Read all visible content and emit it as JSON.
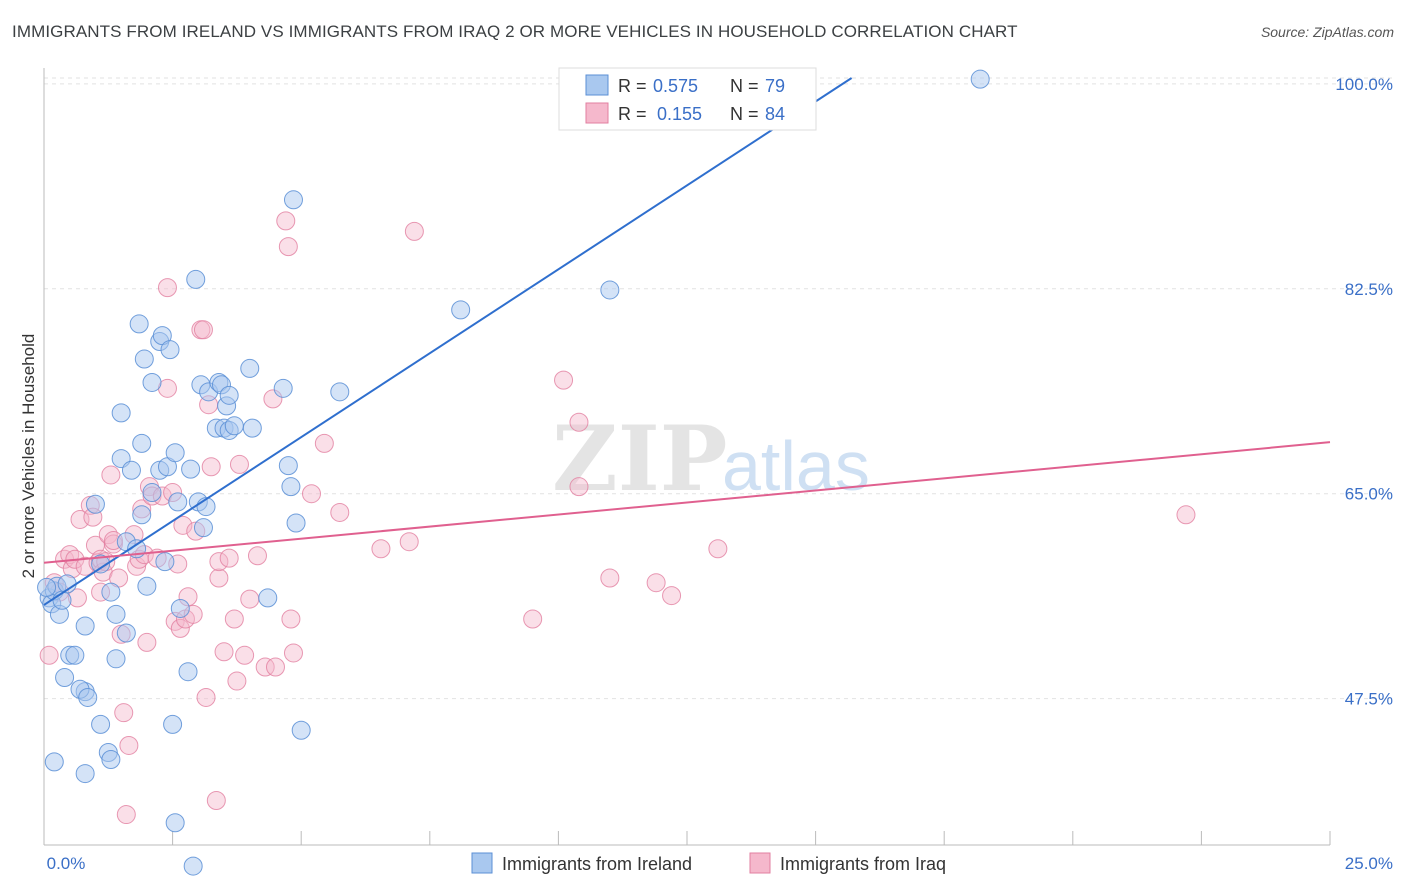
{
  "header": {
    "title": "IMMIGRANTS FROM IRELAND VS IMMIGRANTS FROM IRAQ 2 OR MORE VEHICLES IN HOUSEHOLD CORRELATION CHART",
    "source": "Source: ZipAtlas.com"
  },
  "legend": {
    "r_label": "R =",
    "n_label": "N =",
    "ireland": {
      "r": "0.575",
      "n": "79"
    },
    "iraq": {
      "r": "0.155",
      "n": "84"
    }
  },
  "watermark": {
    "zip": "ZIP",
    "atlas": "atlas"
  },
  "colors": {
    "ireland_fill": "#a9c8ef",
    "ireland_stroke": "#5b8fd6",
    "ireland_line": "#2f6fce",
    "iraq_fill": "#f5b8cc",
    "iraq_stroke": "#e27fa0",
    "iraq_line": "#e0608f",
    "tick_text": "#3a6fc7"
  },
  "chart_data": {
    "type": "scatter",
    "title": "IMMIGRANTS FROM IRELAND VS IMMIGRANTS FROM IRAQ 2 OR MORE VEHICLES IN HOUSEHOLD CORRELATION CHART",
    "xlabel": "",
    "ylabel": "2 or more Vehicles in Household",
    "xlim": [
      0,
      25
    ],
    "ylim": [
      35,
      100.5
    ],
    "x_tick_labels": [
      "0.0%",
      "25.0%"
    ],
    "y_ticks": [
      47.5,
      65.0,
      82.5,
      100.0
    ],
    "y_tick_labels": [
      "47.5%",
      "65.0%",
      "82.5%",
      "100.0%"
    ],
    "grid": true,
    "series": [
      {
        "name": "Immigrants from Ireland",
        "r": 0.575,
        "n": 79,
        "trend": [
          [
            0,
            55.5
          ],
          [
            15.7,
            100.5
          ]
        ],
        "points": [
          [
            0.1,
            56.1
          ],
          [
            0.15,
            55.6
          ],
          [
            0.2,
            56.7
          ],
          [
            0.25,
            57.1
          ],
          [
            0.3,
            54.7
          ],
          [
            0.35,
            55.9
          ],
          [
            0.45,
            57.3
          ],
          [
            0.5,
            51.2
          ],
          [
            0.4,
            49.3
          ],
          [
            0.2,
            42.1
          ],
          [
            0.8,
            48.1
          ],
          [
            0.7,
            48.3
          ],
          [
            0.6,
            51.2
          ],
          [
            0.85,
            47.6
          ],
          [
            0.8,
            53.7
          ],
          [
            0.8,
            41.1
          ],
          [
            1.1,
            45.3
          ],
          [
            1.25,
            42.9
          ],
          [
            1.3,
            42.3
          ],
          [
            1.4,
            50.9
          ],
          [
            1.0,
            64.1
          ],
          [
            1.1,
            59.0
          ],
          [
            1.3,
            56.6
          ],
          [
            1.4,
            54.7
          ],
          [
            1.6,
            53.1
          ],
          [
            1.6,
            60.9
          ],
          [
            1.5,
            68.0
          ],
          [
            1.5,
            71.9
          ],
          [
            1.7,
            67.0
          ],
          [
            1.8,
            60.3
          ],
          [
            1.9,
            63.2
          ],
          [
            1.85,
            79.5
          ],
          [
            1.9,
            69.3
          ],
          [
            1.95,
            76.5
          ],
          [
            2.0,
            57.1
          ],
          [
            2.1,
            74.5
          ],
          [
            2.1,
            65.1
          ],
          [
            2.25,
            78.0
          ],
          [
            2.25,
            67.0
          ],
          [
            2.3,
            78.5
          ],
          [
            2.35,
            59.2
          ],
          [
            2.4,
            67.3
          ],
          [
            2.45,
            77.3
          ],
          [
            2.5,
            45.3
          ],
          [
            2.55,
            68.5
          ],
          [
            2.55,
            36.9
          ],
          [
            2.6,
            64.3
          ],
          [
            2.65,
            55.2
          ],
          [
            2.8,
            49.8
          ],
          [
            2.85,
            67.1
          ],
          [
            2.9,
            33.2
          ],
          [
            2.95,
            83.3
          ],
          [
            3.0,
            64.3
          ],
          [
            3.05,
            74.3
          ],
          [
            3.1,
            62.1
          ],
          [
            3.15,
            63.9
          ],
          [
            3.2,
            73.7
          ],
          [
            3.35,
            70.6
          ],
          [
            3.4,
            74.5
          ],
          [
            3.45,
            74.3
          ],
          [
            3.5,
            70.6
          ],
          [
            3.55,
            72.5
          ],
          [
            3.6,
            73.4
          ],
          [
            3.6,
            70.4
          ],
          [
            3.7,
            70.8
          ],
          [
            4.0,
            75.7
          ],
          [
            4.05,
            70.6
          ],
          [
            4.35,
            56.1
          ],
          [
            4.65,
            74.0
          ],
          [
            4.75,
            67.4
          ],
          [
            4.8,
            65.6
          ],
          [
            4.85,
            90.1
          ],
          [
            4.9,
            62.5
          ],
          [
            5.0,
            44.8
          ],
          [
            5.75,
            73.7
          ],
          [
            8.1,
            80.7
          ],
          [
            11.0,
            82.4
          ],
          [
            18.2,
            100.4
          ],
          [
            0.05,
            57.0
          ]
        ]
      },
      {
        "name": "Immigrants from Iraq",
        "r": 0.155,
        "n": 84,
        "trend": [
          [
            0,
            59.1
          ],
          [
            25,
            69.4
          ]
        ],
        "points": [
          [
            0.1,
            51.2
          ],
          [
            0.2,
            57.4
          ],
          [
            0.3,
            56.6
          ],
          [
            0.4,
            59.4
          ],
          [
            0.5,
            59.8
          ],
          [
            0.55,
            58.6
          ],
          [
            0.6,
            59.4
          ],
          [
            0.65,
            56.1
          ],
          [
            0.7,
            62.8
          ],
          [
            0.8,
            58.8
          ],
          [
            0.9,
            64.0
          ],
          [
            0.95,
            63.0
          ],
          [
            1.0,
            60.6
          ],
          [
            1.05,
            59.1
          ],
          [
            1.1,
            59.4
          ],
          [
            1.1,
            56.6
          ],
          [
            1.15,
            58.3
          ],
          [
            1.2,
            59.2
          ],
          [
            1.25,
            61.5
          ],
          [
            1.3,
            66.6
          ],
          [
            1.35,
            60.7
          ],
          [
            1.35,
            61.0
          ],
          [
            1.45,
            57.8
          ],
          [
            1.5,
            53.0
          ],
          [
            1.55,
            46.3
          ],
          [
            1.6,
            37.6
          ],
          [
            1.65,
            43.5
          ],
          [
            1.75,
            61.5
          ],
          [
            1.8,
            58.8
          ],
          [
            1.85,
            59.4
          ],
          [
            1.95,
            59.8
          ],
          [
            1.9,
            63.7
          ],
          [
            2.0,
            52.3
          ],
          [
            2.05,
            65.6
          ],
          [
            2.1,
            64.8
          ],
          [
            2.2,
            59.5
          ],
          [
            2.3,
            64.8
          ],
          [
            2.4,
            74.0
          ],
          [
            2.4,
            82.6
          ],
          [
            2.5,
            65.1
          ],
          [
            2.55,
            54.1
          ],
          [
            2.6,
            59.0
          ],
          [
            2.65,
            53.5
          ],
          [
            2.7,
            62.3
          ],
          [
            2.75,
            54.3
          ],
          [
            2.8,
            56.2
          ],
          [
            2.9,
            54.7
          ],
          [
            2.95,
            61.8
          ],
          [
            3.05,
            79.0
          ],
          [
            3.1,
            79.0
          ],
          [
            3.15,
            47.6
          ],
          [
            3.2,
            72.6
          ],
          [
            3.25,
            67.3
          ],
          [
            3.35,
            38.8
          ],
          [
            3.4,
            57.8
          ],
          [
            3.4,
            59.2
          ],
          [
            3.5,
            51.5
          ],
          [
            3.6,
            59.5
          ],
          [
            3.7,
            54.3
          ],
          [
            3.75,
            49.0
          ],
          [
            3.8,
            67.5
          ],
          [
            3.9,
            51.2
          ],
          [
            4.0,
            56.0
          ],
          [
            4.15,
            59.7
          ],
          [
            4.3,
            50.2
          ],
          [
            4.45,
            73.1
          ],
          [
            4.5,
            50.2
          ],
          [
            4.7,
            88.3
          ],
          [
            4.75,
            86.1
          ],
          [
            4.8,
            54.3
          ],
          [
            4.85,
            51.4
          ],
          [
            5.2,
            65.0
          ],
          [
            5.45,
            69.3
          ],
          [
            5.75,
            63.4
          ],
          [
            6.55,
            60.3
          ],
          [
            7.1,
            60.9
          ],
          [
            7.2,
            87.4
          ],
          [
            9.5,
            54.3
          ],
          [
            10.1,
            74.7
          ],
          [
            10.4,
            71.1
          ],
          [
            10.4,
            65.6
          ],
          [
            11.0,
            57.8
          ],
          [
            11.9,
            57.4
          ],
          [
            12.2,
            56.3
          ],
          [
            13.1,
            60.3
          ],
          [
            22.2,
            63.2
          ]
        ]
      }
    ]
  },
  "bottom_legend": {
    "ireland_label": "Immigrants from Ireland",
    "iraq_label": "Immigrants from Iraq"
  }
}
